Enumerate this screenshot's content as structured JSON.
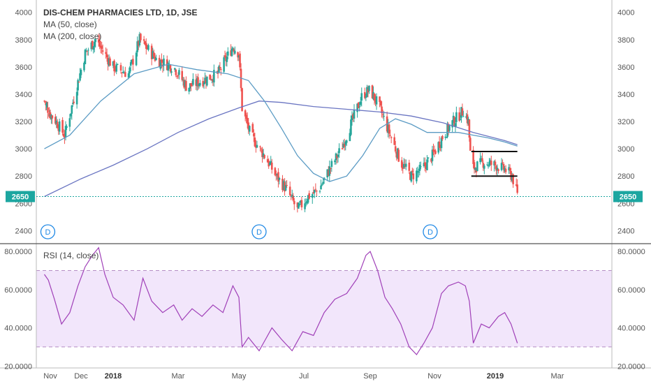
{
  "header": {
    "title": "DIS-CHEM PHARMACIES LTD, 1D, JSE",
    "ma50_label": "MA (50, close)",
    "ma200_label": "MA (200, close)",
    "rsi_label": "RSI (14, close)"
  },
  "colors": {
    "up": "#26a69a",
    "down": "#ef5350",
    "ma50": "#5b9bc4",
    "ma200": "#6a75c2",
    "rsi": "#a040b8",
    "rsi_band": "#f2e6fb",
    "price_line": "#1ca6a0",
    "dividend": "#1e88e5"
  },
  "chart_data": [
    {
      "type": "candlestick",
      "title": "DIS-CHEM PHARMACIES LTD, 1D, JSE",
      "x_ticks": [
        "Nov",
        "Dec",
        "2018",
        "Mar",
        "May",
        "Jul",
        "Sep",
        "Nov",
        "2019",
        "Mar"
      ],
      "x_ticks_bold": [
        "2018",
        "2019"
      ],
      "y_ticks": [
        2400,
        2600,
        2800,
        3000,
        3200,
        3400,
        3600,
        3800,
        4000
      ],
      "ylim": [
        2320,
        4060
      ],
      "last_price": 2650,
      "last_price_label": "2650",
      "price_points": [
        [
          "2017-10-20",
          3350
        ],
        [
          "2017-11-05",
          3220
        ],
        [
          "2017-11-15",
          3100
        ],
        [
          "2017-11-25",
          3400
        ],
        [
          "2017-12-05",
          3700
        ],
        [
          "2017-12-15",
          3800
        ],
        [
          "2018-01-01",
          3600
        ],
        [
          "2018-01-15",
          3550
        ],
        [
          "2018-01-25",
          3800
        ],
        [
          "2018-02-10",
          3650
        ],
        [
          "2018-02-25",
          3600
        ],
        [
          "2018-03-10",
          3450
        ],
        [
          "2018-03-25",
          3500
        ],
        [
          "2018-04-10",
          3550
        ],
        [
          "2018-04-25",
          3750
        ],
        [
          "2018-05-01",
          3700
        ],
        [
          "2018-05-04",
          3300
        ],
        [
          "2018-05-12",
          3100
        ],
        [
          "2018-05-25",
          2950
        ],
        [
          "2018-06-05",
          2800
        ],
        [
          "2018-06-15",
          2700
        ],
        [
          "2018-06-25",
          2550
        ],
        [
          "2018-07-05",
          2650
        ],
        [
          "2018-07-15",
          2700
        ],
        [
          "2018-07-25",
          2850
        ],
        [
          "2018-08-05",
          3000
        ],
        [
          "2018-08-15",
          3200
        ],
        [
          "2018-08-25",
          3400
        ],
        [
          "2018-09-01",
          3430
        ],
        [
          "2018-09-10",
          3300
        ],
        [
          "2018-09-20",
          3100
        ],
        [
          "2018-09-30",
          2900
        ],
        [
          "2018-10-10",
          2800
        ],
        [
          "2018-10-20",
          2850
        ],
        [
          "2018-10-30",
          2950
        ],
        [
          "2018-11-10",
          3100
        ],
        [
          "2018-11-20",
          3200
        ],
        [
          "2018-11-30",
          3280
        ],
        [
          "2018-12-05",
          3200
        ],
        [
          "2018-12-08",
          2850
        ],
        [
          "2018-12-20",
          2900
        ],
        [
          "2019-01-01",
          2880
        ],
        [
          "2019-01-10",
          2850
        ],
        [
          "2019-01-17",
          2800
        ],
        [
          "2019-01-22",
          2660
        ]
      ],
      "ma50": [
        [
          "2017-10-20",
          3000
        ],
        [
          "2017-11-20",
          3100
        ],
        [
          "2017-12-20",
          3350
        ],
        [
          "2018-01-20",
          3550
        ],
        [
          "2018-02-20",
          3620
        ],
        [
          "2018-03-20",
          3580
        ],
        [
          "2018-04-20",
          3550
        ],
        [
          "2018-05-10",
          3500
        ],
        [
          "2018-05-25",
          3350
        ],
        [
          "2018-06-10",
          3150
        ],
        [
          "2018-06-25",
          2950
        ],
        [
          "2018-07-10",
          2820
        ],
        [
          "2018-07-25",
          2760
        ],
        [
          "2018-08-10",
          2800
        ],
        [
          "2018-08-25",
          2950
        ],
        [
          "2018-09-10",
          3150
        ],
        [
          "2018-09-25",
          3220
        ],
        [
          "2018-10-10",
          3180
        ],
        [
          "2018-10-25",
          3120
        ],
        [
          "2018-11-10",
          3120
        ],
        [
          "2018-11-25",
          3120
        ],
        [
          "2018-12-10",
          3100
        ],
        [
          "2018-12-25",
          3080
        ],
        [
          "2019-01-10",
          3050
        ],
        [
          "2019-01-22",
          3020
        ]
      ],
      "ma200": [
        [
          "2017-10-20",
          2650
        ],
        [
          "2017-12-01",
          2780
        ],
        [
          "2018-01-01",
          2880
        ],
        [
          "2018-02-01",
          3000
        ],
        [
          "2018-03-01",
          3120
        ],
        [
          "2018-04-01",
          3220
        ],
        [
          "2018-05-01",
          3300
        ],
        [
          "2018-05-20",
          3350
        ],
        [
          "2018-06-10",
          3340
        ],
        [
          "2018-07-10",
          3310
        ],
        [
          "2018-08-10",
          3290
        ],
        [
          "2018-09-10",
          3270
        ],
        [
          "2018-10-10",
          3240
        ],
        [
          "2018-11-10",
          3190
        ],
        [
          "2018-12-10",
          3120
        ],
        [
          "2019-01-10",
          3060
        ],
        [
          "2019-01-22",
          3030
        ]
      ],
      "channel_lines": [
        {
          "from": [
            "2018-12-08",
            2980
          ],
          "to": [
            "2019-01-22",
            2980
          ]
        },
        {
          "from": [
            "2018-12-08",
            2800
          ],
          "to": [
            "2019-01-22",
            2800
          ]
        }
      ],
      "dividend_markers": [
        {
          "date": "2017-10-27",
          "label": "D"
        },
        {
          "date": "2018-05-20",
          "label": "D"
        },
        {
          "date": "2018-10-28",
          "label": "D"
        }
      ],
      "legend": [
        "MA (50, close)",
        "MA (200, close)"
      ]
    },
    {
      "type": "line",
      "title": "RSI (14, close)",
      "y_ticks": [
        20,
        40,
        60,
        80
      ],
      "y_tick_labels": [
        "20.0000",
        "40.0000",
        "60.0000",
        "80.0000"
      ],
      "ylim": [
        19,
        83
      ],
      "band": [
        30,
        70
      ],
      "rsi_points": [
        [
          "2017-10-20",
          68
        ],
        [
          "2017-10-28",
          65
        ],
        [
          "2017-11-05",
          55
        ],
        [
          "2017-11-12",
          42
        ],
        [
          "2017-11-20",
          48
        ],
        [
          "2017-11-28",
          62
        ],
        [
          "2017-12-05",
          72
        ],
        [
          "2017-12-12",
          78
        ],
        [
          "2017-12-18",
          82
        ],
        [
          "2017-12-24",
          68
        ],
        [
          "2018-01-01",
          56
        ],
        [
          "2018-01-10",
          52
        ],
        [
          "2018-01-20",
          44
        ],
        [
          "2018-01-28",
          66
        ],
        [
          "2018-02-05",
          54
        ],
        [
          "2018-02-15",
          48
        ],
        [
          "2018-02-25",
          52
        ],
        [
          "2018-03-05",
          44
        ],
        [
          "2018-03-15",
          50
        ],
        [
          "2018-03-25",
          46
        ],
        [
          "2018-04-05",
          52
        ],
        [
          "2018-04-15",
          48
        ],
        [
          "2018-04-25",
          62
        ],
        [
          "2018-05-01",
          56
        ],
        [
          "2018-05-04",
          30
        ],
        [
          "2018-05-10",
          35
        ],
        [
          "2018-05-20",
          28
        ],
        [
          "2018-06-01",
          40
        ],
        [
          "2018-06-10",
          34
        ],
        [
          "2018-06-20",
          28
        ],
        [
          "2018-06-30",
          38
        ],
        [
          "2018-07-10",
          36
        ],
        [
          "2018-07-20",
          48
        ],
        [
          "2018-07-30",
          55
        ],
        [
          "2018-08-10",
          58
        ],
        [
          "2018-08-20",
          66
        ],
        [
          "2018-08-28",
          78
        ],
        [
          "2018-09-01",
          80
        ],
        [
          "2018-09-08",
          70
        ],
        [
          "2018-09-15",
          56
        ],
        [
          "2018-09-22",
          50
        ],
        [
          "2018-09-30",
          42
        ],
        [
          "2018-10-08",
          30
        ],
        [
          "2018-10-15",
          26
        ],
        [
          "2018-10-22",
          32
        ],
        [
          "2018-10-30",
          40
        ],
        [
          "2018-11-08",
          58
        ],
        [
          "2018-11-15",
          62
        ],
        [
          "2018-11-25",
          64
        ],
        [
          "2018-12-02",
          62
        ],
        [
          "2018-12-06",
          54
        ],
        [
          "2018-12-10",
          32
        ],
        [
          "2018-12-18",
          42
        ],
        [
          "2018-12-26",
          40
        ],
        [
          "2019-01-04",
          46
        ],
        [
          "2019-01-10",
          48
        ],
        [
          "2019-01-16",
          42
        ],
        [
          "2019-01-22",
          32
        ]
      ]
    }
  ]
}
